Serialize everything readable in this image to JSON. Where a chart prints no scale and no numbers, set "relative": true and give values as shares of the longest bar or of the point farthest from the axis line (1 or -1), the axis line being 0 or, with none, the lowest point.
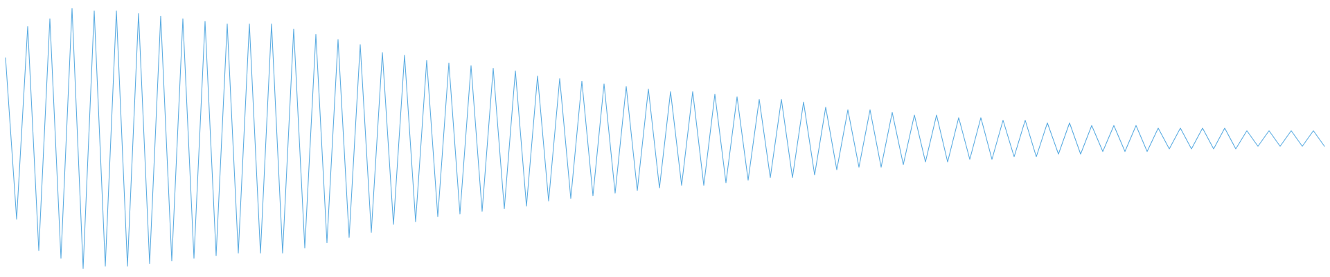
{
  "chart_data": {
    "type": "line",
    "relative": true,
    "grid": false,
    "legend": false,
    "marker": "none",
    "line_style": "solid",
    "categories": [
      null,
      null,
      null,
      null,
      null,
      null,
      null,
      null,
      null,
      null,
      null,
      null,
      null,
      null,
      null,
      null,
      null,
      null,
      null,
      null,
      null,
      null,
      null,
      null,
      null,
      null,
      null,
      null,
      null,
      null,
      null,
      null,
      null,
      null,
      null,
      null,
      null,
      null,
      null,
      null,
      null,
      null,
      null,
      null,
      null,
      null,
      null,
      null,
      null,
      null,
      null,
      null,
      null,
      null,
      null,
      null,
      null,
      null,
      null,
      null,
      null,
      null,
      null,
      null,
      null,
      null,
      null,
      null,
      null,
      null,
      null,
      null,
      null,
      null,
      null,
      null,
      null,
      null,
      null,
      null,
      null,
      null,
      null,
      null,
      null,
      null,
      null,
      null,
      null,
      null,
      null,
      null,
      null,
      null,
      null,
      null,
      null,
      null,
      null,
      null,
      null,
      null,
      null,
      null,
      null,
      null,
      null,
      null,
      null,
      null,
      null,
      null,
      null,
      null,
      null,
      null,
      null,
      null,
      null,
      null
    ],
    "series": [
      {
        "color": "#5dade2",
        "values": [
          0.81,
          0.19,
          0.93,
          0.07,
          0.96,
          0.04,
          1.0,
          0.0,
          0.99,
          0.01,
          0.99,
          0.01,
          0.98,
          0.02,
          0.97,
          0.03,
          0.96,
          0.04,
          0.95,
          0.05,
          0.94,
          0.06,
          0.94,
          0.06,
          0.94,
          0.06,
          0.92,
          0.08,
          0.9,
          0.1,
          0.88,
          0.12,
          0.86,
          0.14,
          0.83,
          0.17,
          0.82,
          0.18,
          0.8,
          0.2,
          0.79,
          0.21,
          0.78,
          0.22,
          0.77,
          0.23,
          0.76,
          0.24,
          0.74,
          0.26,
          0.73,
          0.27,
          0.72,
          0.28,
          0.71,
          0.29,
          0.7,
          0.3,
          0.69,
          0.31,
          0.68,
          0.32,
          0.68,
          0.32,
          0.67,
          0.33,
          0.66,
          0.34,
          0.65,
          0.35,
          0.65,
          0.35,
          0.64,
          0.36,
          0.62,
          0.38,
          0.61,
          0.39,
          0.61,
          0.39,
          0.6,
          0.4,
          0.59,
          0.41,
          0.59,
          0.41,
          0.58,
          0.42,
          0.58,
          0.42,
          0.57,
          0.43,
          0.57,
          0.43,
          0.56,
          0.44,
          0.56,
          0.44,
          0.55,
          0.45,
          0.55,
          0.45,
          0.55,
          0.45,
          0.54,
          0.46,
          0.54,
          0.46,
          0.54,
          0.46,
          0.54,
          0.46,
          0.53,
          0.47,
          0.53,
          0.47,
          0.53,
          0.47,
          0.53,
          0.47
        ]
      }
    ]
  }
}
